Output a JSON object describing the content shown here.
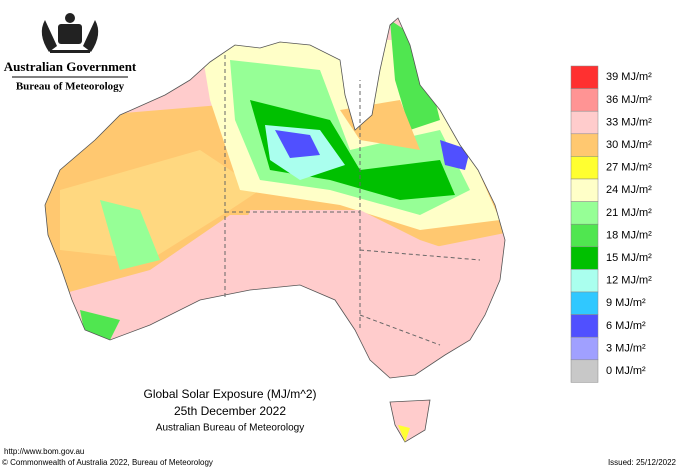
{
  "header": {
    "agency": "Australian Government",
    "bureau": "Bureau of Meteorology"
  },
  "title": {
    "line1": "Global Solar Exposure (MJ/m^2)",
    "line2": "25th December 2022",
    "line3": "Australian Bureau of Meteorology"
  },
  "legend": [
    {
      "label": "39 MJ/m²",
      "color": "#ff3030"
    },
    {
      "label": "36 MJ/m²",
      "color": "#ff9494"
    },
    {
      "label": "33 MJ/m²",
      "color": "#ffcccc"
    },
    {
      "label": "30 MJ/m²",
      "color": "#ffc870"
    },
    {
      "label": "27 MJ/m²",
      "color": "#ffff30"
    },
    {
      "label": "24 MJ/m²",
      "color": "#ffffc8"
    },
    {
      "label": "21 MJ/m²",
      "color": "#96ff96"
    },
    {
      "label": "18 MJ/m²",
      "color": "#50e650"
    },
    {
      "label": "15 MJ/m²",
      "color": "#00c000"
    },
    {
      "label": "12 MJ/m²",
      "color": "#aaffee"
    },
    {
      "label": "9 MJ/m²",
      "color": "#30c8ff"
    },
    {
      "label": "6 MJ/m²",
      "color": "#5050ff"
    },
    {
      "label": "3 MJ/m²",
      "color": "#a0a0ff"
    },
    {
      "label": "0 MJ/m²",
      "color": "#c8c8c8"
    }
  ],
  "footer": {
    "url": "http://www.bom.gov.au",
    "copyright": "© Commonwealth of Australia 2022, Bureau of Meteorology",
    "issued": "Issued: 25/12/2022"
  }
}
